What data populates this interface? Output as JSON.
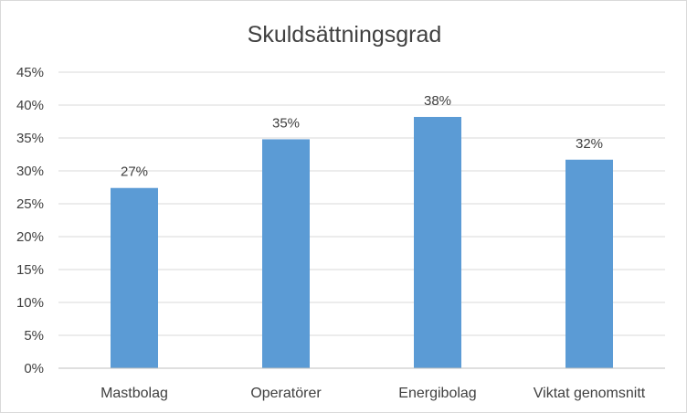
{
  "chart_data": {
    "type": "bar",
    "title": "Skuldsättningsgrad",
    "categories": [
      "Mastbolag",
      "Operatörer",
      "Energibolag",
      "Viktat genomsnitt"
    ],
    "values": [
      0.274,
      0.348,
      0.382,
      0.317
    ],
    "data_labels": [
      "27%",
      "35%",
      "38%",
      "32%"
    ],
    "yticks": [
      0,
      0.05,
      0.1,
      0.15,
      0.2,
      0.25,
      0.3,
      0.35,
      0.4,
      0.45
    ],
    "ytick_labels": [
      "0%",
      "5%",
      "10%",
      "15%",
      "20%",
      "25%",
      "30%",
      "35%",
      "40%",
      "45%"
    ],
    "ylim": [
      0,
      0.45
    ],
    "grid": true,
    "legend": "none",
    "bar_color": "#5b9bd5"
  }
}
